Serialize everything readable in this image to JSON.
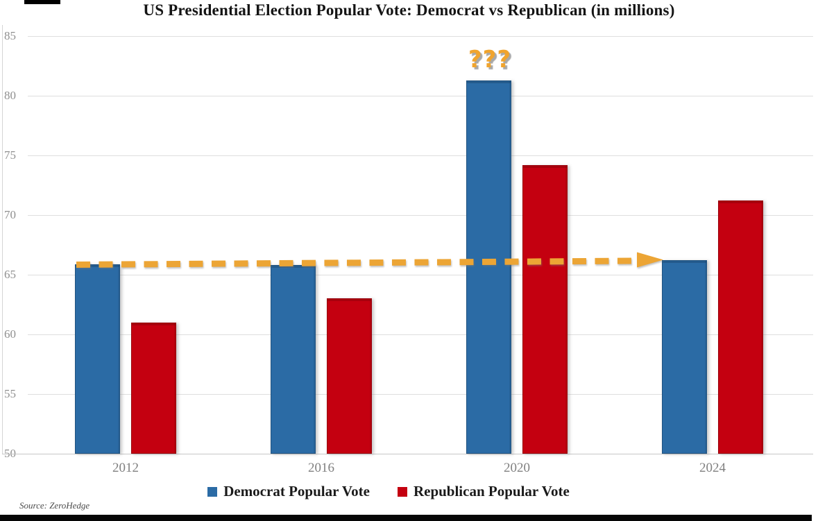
{
  "source": "Source: ZeroHedge",
  "chart_data": {
    "type": "bar",
    "title": "US Presidential Election Popular Vote: Democrat vs Republican (in millions)",
    "categories": [
      "2012",
      "2016",
      "2020",
      "2024"
    ],
    "series": [
      {
        "name": "Democrat Popular Vote",
        "color": "#2B6BA5",
        "values": [
          65.9,
          65.8,
          81.3,
          66.2
        ]
      },
      {
        "name": "Republican Popular Vote",
        "color": "#C40010",
        "values": [
          61.0,
          63.0,
          74.2,
          71.2
        ]
      }
    ],
    "xlabel": "",
    "ylabel": "",
    "ylim": [
      50,
      85
    ],
    "yticks": [
      50,
      55,
      60,
      65,
      70,
      75,
      80,
      85
    ],
    "grid": true,
    "legend_position": "bottom",
    "annotations": [
      {
        "type": "text",
        "text": "???",
        "color": "#F0A42E",
        "position": "above 2020 Democrat bar"
      },
      {
        "type": "dashed-arrow",
        "color": "#ECA535",
        "y_value": 66,
        "from_category": "2012",
        "to_category": "2024",
        "description": "Horizontal dashed arrow at ~66M running from the 2012 Democrat bar top to the 2024 Democrat bar"
      }
    ]
  }
}
